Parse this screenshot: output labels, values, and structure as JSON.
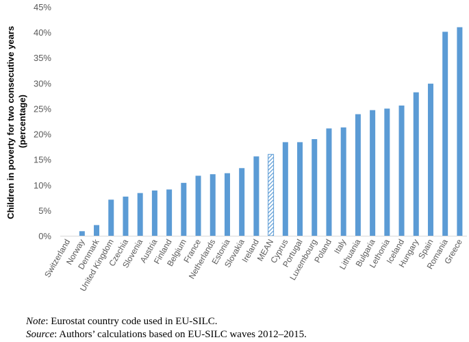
{
  "chart_data": {
    "type": "bar",
    "title": "",
    "xlabel": "",
    "ylabel": "Children in poverty for two consecutive years (percentage)",
    "ylabel_lines": [
      "Children in poverty for two consecutive years",
      "(percentage)"
    ],
    "ylim": [
      0,
      45
    ],
    "yticks": [
      0,
      5,
      10,
      15,
      20,
      25,
      30,
      35,
      40,
      45
    ],
    "ytick_labels": [
      "0%",
      "5%",
      "10%",
      "15%",
      "20%",
      "25%",
      "30%",
      "35%",
      "40%",
      "45%"
    ],
    "grid": false,
    "bar_color": "#5B9BD5",
    "highlight_category": "MEAN",
    "categories": [
      "Switzerland",
      "Norway",
      "Denmark",
      "United Kingdom",
      "Czechia",
      "Slovenia",
      "Austria",
      "Finland",
      "Belgium",
      "France",
      "Netherlands",
      "Estonia",
      "Slovakia",
      "Ireland",
      "MEAN",
      "Cyprus",
      "Portugal",
      "Luxembourg",
      "Poland",
      "Italy",
      "Lithuania",
      "Bulgaria",
      "Lethonia",
      "Iceland",
      "Hungary",
      "Spain",
      "Romania",
      "Greece"
    ],
    "values": [
      0.0,
      0.9,
      2.1,
      7.1,
      7.7,
      8.4,
      8.9,
      9.1,
      10.4,
      11.8,
      12.1,
      12.3,
      13.3,
      15.6,
      16.0,
      18.4,
      18.4,
      19.0,
      21.1,
      21.3,
      23.9,
      24.7,
      25.0,
      25.6,
      28.2,
      29.9,
      40.1,
      41.0
    ]
  },
  "notes": {
    "note_label": "Note",
    "note_text": ": Eurostat country code used in EU-SILC.",
    "source_label": "Source",
    "source_text": ": Authors’ calculations based on EU-SILC waves 2012–2015."
  }
}
